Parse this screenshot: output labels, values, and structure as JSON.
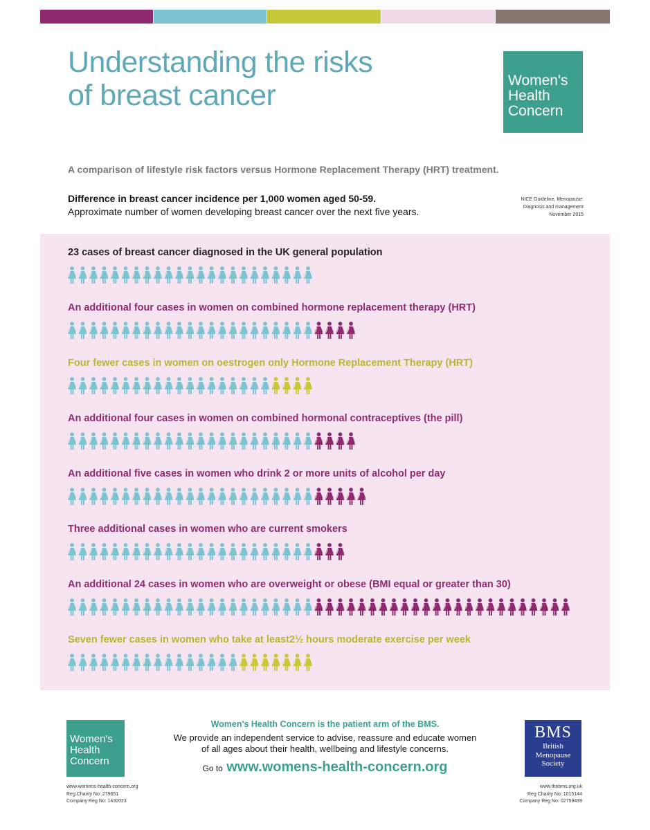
{
  "colors": {
    "teal": "#5fa8b8",
    "brand_green": "#3d9f8d",
    "figure_blue": "#7ec1d0",
    "figure_purple": "#8f2a70",
    "figure_yellow": "#c9c73a",
    "text_purple": "#8f2a70",
    "text_yellow": "#b9b632",
    "panel_bg": "#f6e5f1"
  },
  "color_bars": [
    "#8f2a70",
    "#7ec1d0",
    "#c9c73a",
    "#f2d9ea",
    "#857670"
  ],
  "header": {
    "title_line1": "Understanding the risks",
    "title_line2": "of breast cancer",
    "logo": {
      "line1": "Women's",
      "line2": "Health",
      "line3": "Concern"
    }
  },
  "subtitle": "A comparison of lifestyle risk factors versus Hormone Replacement Therapy (HRT) treatment.",
  "difference": {
    "line1": "Difference in breast cancer incidence per 1,000 women aged 50-59.",
    "line2": "Approximate number of women developing breast cancer over the next five years."
  },
  "source": {
    "line1": "NICE Guideline, Menopause:",
    "line2": "Diagnosis and management",
    "line3": "November 2015"
  },
  "rows": [
    {
      "label": "23 cases of breast cancer diagnosed in the  UK general population",
      "label_color": "black",
      "base": 23,
      "extra": 0,
      "extra_color": "none"
    },
    {
      "label": "An additional four cases in women on combined hormone replacement therapy (HRT)",
      "label_color": "purple",
      "base": 23,
      "extra": 4,
      "extra_color": "purple"
    },
    {
      "label": "Four fewer  cases in women on oestrogen only Hormone Replacement Therapy (HRT)",
      "label_color": "yellow",
      "base": 19,
      "extra": 4,
      "extra_color": "yellow"
    },
    {
      "label": "An additional four cases in women on combined hormonal contraceptives (the pill)",
      "label_color": "purple",
      "base": 23,
      "extra": 4,
      "extra_color": "purple"
    },
    {
      "label": "An additional five cases in women who drink 2 or more units of alcohol per day",
      "label_color": "purple",
      "base": 23,
      "extra": 5,
      "extra_color": "purple"
    },
    {
      "label": "Three additional cases in women who are current smokers",
      "label_color": "purple",
      "base": 23,
      "extra": 3,
      "extra_color": "purple"
    },
    {
      "label": "An additional 24 cases in women who are overweight or obese (BMI equal or greater than 30)",
      "label_color": "purple",
      "base": 23,
      "extra": 24,
      "extra_color": "purple"
    },
    {
      "label": "Seven fewer cases in women who take at least2½ hours moderate exercise per week",
      "label_color": "yellow",
      "base": 16,
      "extra": 7,
      "extra_color": "yellow"
    }
  ],
  "footer": {
    "heading": "Women's Health Concern is the patient arm of the BMS.",
    "line1": "We provide an independent service to advise, reassure and educate women",
    "line2": "of all ages about their health, wellbeing and lifestyle concerns.",
    "goto_label": "Go to",
    "goto_url": "www.womens-health-concern.org",
    "left_info": {
      "line1": "www.womens-health-concern.org",
      "line2": "Reg Charity No: 279651",
      "line3": "Company Reg No: 1432023"
    },
    "right_info": {
      "line1": "www.thebms.org.uk",
      "line2": "Reg Charity No: 1015144",
      "line3": "Company Reg No: 02759439"
    },
    "bms_logo": {
      "abbr": "BMS",
      "line1": "British",
      "line2": "Menopause",
      "line3": "Society"
    }
  }
}
